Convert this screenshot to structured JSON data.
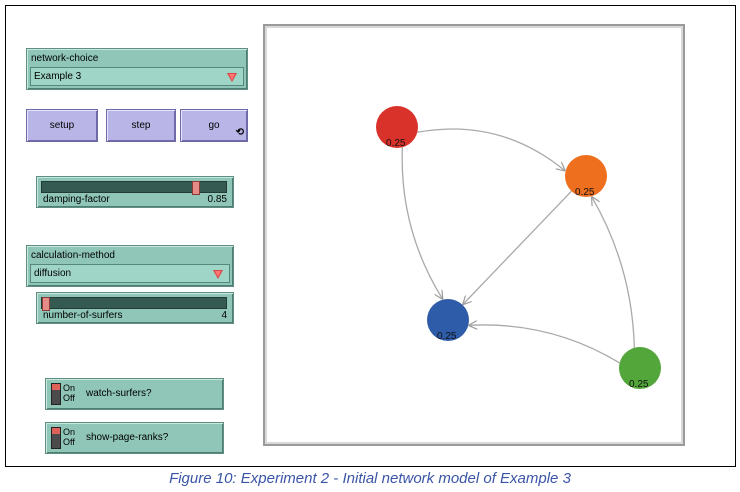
{
  "network_choice": {
    "label": "network-choice",
    "value": "Example 3"
  },
  "buttons": {
    "setup": "setup",
    "step": "step",
    "go": "go",
    "go_forever_icon": "forever-arrows-icon"
  },
  "damping_factor": {
    "label": "damping-factor",
    "value": "0.85",
    "level": 0.85
  },
  "calculation_method": {
    "label": "calculation-method",
    "value": "diffusion"
  },
  "number_of_surfers": {
    "label": "number-of-surfers",
    "value": "4",
    "level": 0.0
  },
  "switches": {
    "on": "On",
    "off": "Off",
    "watch_surfers": {
      "label": "watch-surfers?"
    },
    "show_page_ranks": {
      "label": "show-page-ranks?"
    }
  },
  "view": {
    "nodes": [
      {
        "id": "red",
        "color": "#d8322a",
        "rank": "0.25"
      },
      {
        "id": "orange",
        "color": "#ee6f1d",
        "rank": "0.25"
      },
      {
        "id": "blue",
        "color": "#2f5ca8",
        "rank": "0.25"
      },
      {
        "id": "green",
        "color": "#52a63a",
        "rank": "0.25"
      }
    ],
    "links": [
      {
        "from": "red",
        "to": "orange"
      },
      {
        "from": "red",
        "to": "blue"
      },
      {
        "from": "orange",
        "to": "blue"
      },
      {
        "from": "green",
        "to": "orange"
      },
      {
        "from": "green",
        "to": "blue"
      }
    ]
  },
  "caption": "Figure 10: Experiment 2 - Initial network model of Example 3"
}
